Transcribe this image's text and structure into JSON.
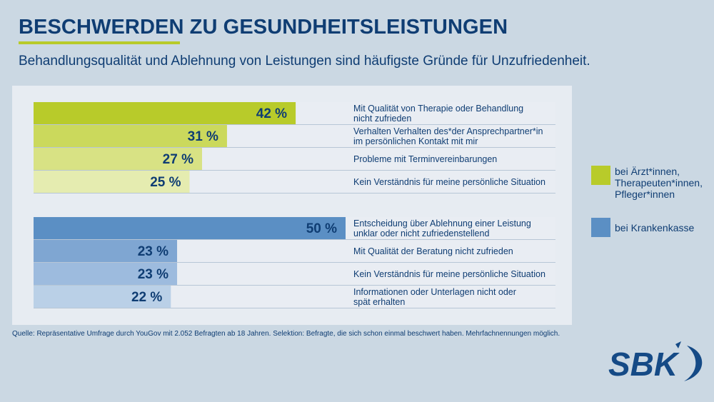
{
  "header": {
    "title": "BESCHWERDEN ZU GESUNDHEITSLEISTUNGEN",
    "subtitle": "Behandlungsqualität und Ablehnung von Leistungen sind häufigste Gründe für Unzufriedenheit."
  },
  "colors": {
    "title": "#0f3d73",
    "accent_green": "#b8cb2a",
    "accent_blue": "#5b8fc4",
    "background": "#cbd8e3",
    "panel": "#e7ecf2"
  },
  "chart_data": {
    "type": "bar",
    "orientation": "horizontal",
    "title": "BESCHWERDEN ZU GESUNDHEITSLEISTUNGEN",
    "subtitle": "Behandlungsqualität und Ablehnung von Leistungen sind häufigste Gründe für Unzufriedenheit.",
    "unit": "%",
    "xlim": [
      0,
      50
    ],
    "grid": false,
    "legend_position": "right",
    "groups": [
      {
        "name": "bei Ärzt*innen, Therapeuten*innen, Pfleger*innen",
        "color": "#b8cb2a",
        "shades": [
          "#b8cb2a",
          "#cbd95c",
          "#d8e284",
          "#e5ecb0"
        ],
        "categories": [
          "Mit Qualität von Therapie oder Behandlung nicht zufrieden",
          "Verhalten Verhalten des*der Ansprechpartner*in im persönlichen Kontakt mit mir",
          "Probleme mit Terminvereinbarungen",
          "Kein Verständnis für meine persönliche Situation"
        ],
        "values": [
          42,
          31,
          27,
          25
        ],
        "labels": [
          "42 %",
          "31 %",
          "27 %",
          "25 %"
        ]
      },
      {
        "name": "bei Krankenkasse",
        "color": "#5b8fc4",
        "shades": [
          "#5b8fc4",
          "#7fa6d2",
          "#9dbbde",
          "#bad0e7"
        ],
        "categories": [
          "Entscheidung über Ablehnung einer Leistung unklar oder nicht zufriedenstellend",
          "Mit Qualität der Beratung nicht zufrieden",
          "Kein Verständnis für meine persönliche Situation",
          "Informationen oder Unterlagen nicht oder spät erhalten"
        ],
        "values": [
          50,
          23,
          23,
          22
        ],
        "labels": [
          "50 %",
          "23 %",
          "23 %",
          "22 %"
        ]
      }
    ]
  },
  "category_labels": [
    [
      "Mit Qualität von Therapie oder Behandlung",
      "nicht zufrieden"
    ],
    [
      "Verhalten Verhalten des*der Ansprechpartner*in",
      "im persönlichen Kontakt mit mir"
    ],
    [
      "Probleme mit Terminvereinbarungen"
    ],
    [
      "Kein Verständnis für meine persönliche Situation"
    ],
    [
      "Entscheidung über Ablehnung einer Leistung",
      "unklar oder nicht zufriedenstellend"
    ],
    [
      "Mit Qualität der Beratung nicht zufrieden"
    ],
    [
      "Kein Verständnis für meine persönliche Situation"
    ],
    [
      "Informationen oder Unterlagen nicht oder",
      "spät erhalten"
    ]
  ],
  "legend": {
    "items": [
      {
        "lines": [
          "bei Ärzt*innen,",
          "Therapeuten*innen,",
          "Pfleger*innen"
        ],
        "color": "#b8cb2a"
      },
      {
        "lines": [
          "bei Krankenkasse"
        ],
        "color": "#5b8fc4"
      }
    ]
  },
  "footer": {
    "source": "Quelle: Repräsentative Umfrage durch YouGov mit 2.052 Befragten ab 18 Jahren. Selektion: Befragte, die sich schon einmal beschwert haben. Mehrfachnennungen möglich.",
    "logo_text": "SBK"
  }
}
